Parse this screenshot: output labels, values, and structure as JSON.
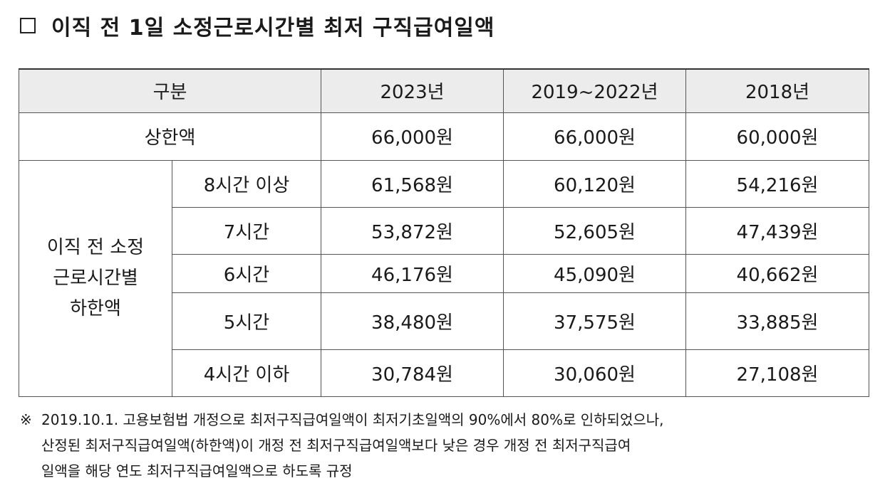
{
  "title": "이직 전 1일 소정근로시간별 최저 구직급여일액",
  "table": {
    "header": [
      "구분",
      "2023년",
      "2019~2022년",
      "2018년"
    ],
    "upper_limit": {
      "label": "상한액",
      "values": [
        "66,000원",
        "66,000원",
        "60,000원"
      ]
    },
    "lower_limit": {
      "label_lines": [
        "이직 전 소정",
        "근로시간별",
        "하한액"
      ],
      "rows": [
        {
          "hours": "8시간 이상",
          "values": [
            "61,568원",
            "60,120원",
            "54,216원"
          ]
        },
        {
          "hours": "7시간",
          "values": [
            "53,872원",
            "52,605원",
            "47,439원"
          ]
        },
        {
          "hours": "6시간",
          "values": [
            "46,176원",
            "45,090원",
            "40,662원"
          ]
        },
        {
          "hours": "5시간",
          "values": [
            "38,480원",
            "37,575원",
            "33,885원"
          ]
        },
        {
          "hours": "4시간 이하",
          "values": [
            "30,784원",
            "30,060원",
            "27,108원"
          ]
        }
      ]
    }
  },
  "note": {
    "mark": "※",
    "lines": [
      "2019.10.1. 고용보험법 개정으로 최저구직급여일액이 최저기초일액의 90%에서 80%로 인하되었으나,",
      "산정된 최저구직급여일액(하한액)이 개정 전 최저구직급여일액보다 낮은 경우 개정 전 최저구직급여",
      "일액을 해당 연도 최저구직급여일액으로 하도록 규정"
    ]
  }
}
